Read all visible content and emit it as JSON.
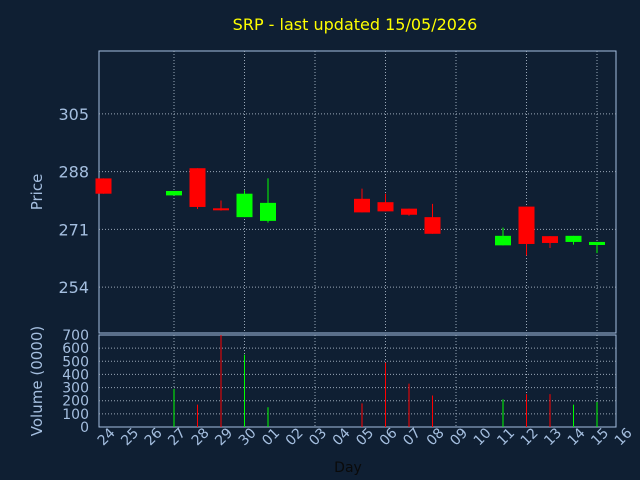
{
  "chart_data": {
    "type": "candlestick",
    "title": "SRP - last updated 15/05/2026",
    "ylabel_price": "Price",
    "ylabel_volume": "Volume (0000)",
    "xlabel": "Day",
    "x_tick_labels": [
      "24",
      "25",
      "26",
      "27",
      "28",
      "29",
      "30",
      "01",
      "02",
      "03",
      "04",
      "05",
      "06",
      "07",
      "08",
      "09",
      "10",
      "11",
      "12",
      "13",
      "14",
      "15",
      "16"
    ],
    "price_axis": {
      "ticks": [
        254,
        271,
        288,
        305
      ],
      "ylim": [
        240.5,
        323.5
      ]
    },
    "volume_axis": {
      "ticks": [
        0,
        100,
        200,
        300,
        400,
        500,
        600,
        700
      ],
      "ylim": [
        0,
        700
      ]
    },
    "grid": true,
    "colors": {
      "background": "#0f1f33",
      "title": "#ffff00",
      "axis_text": "#a5bfe0",
      "grid": "#9aa8b8",
      "up": "#00ff00",
      "down": "#ff0000"
    },
    "candles": [
      {
        "day": "24",
        "open": 286.0,
        "close": 281.5,
        "high": 286.0,
        "low": 281.5,
        "volume": 0
      },
      {
        "day": "27",
        "open": 281.0,
        "close": 282.3,
        "high": 282.3,
        "low": 281.0,
        "volume": 290
      },
      {
        "day": "28",
        "open": 289.0,
        "close": 277.6,
        "high": 289.0,
        "low": 277.0,
        "volume": 170
      },
      {
        "day": "29",
        "open": 277.2,
        "close": 276.8,
        "high": 279.5,
        "low": 276.5,
        "volume": 700
      },
      {
        "day": "30",
        "open": 274.6,
        "close": 281.5,
        "high": 282.5,
        "low": 274.6,
        "volume": 550
      },
      {
        "day": "01",
        "open": 273.5,
        "close": 278.8,
        "high": 286.0,
        "low": 273.0,
        "volume": 150
      },
      {
        "day": "05",
        "open": 280.0,
        "close": 276.0,
        "high": 283.0,
        "low": 276.0,
        "volume": 180
      },
      {
        "day": "06",
        "open": 279.0,
        "close": 276.3,
        "high": 281.5,
        "low": 276.3,
        "volume": 490
      },
      {
        "day": "07",
        "open": 277.1,
        "close": 275.3,
        "high": 277.1,
        "low": 275.0,
        "volume": 330
      },
      {
        "day": "08",
        "open": 274.6,
        "close": 269.7,
        "high": 278.5,
        "low": 269.7,
        "volume": 240
      },
      {
        "day": "11",
        "open": 266.3,
        "close": 269.1,
        "high": 271.5,
        "low": 266.3,
        "volume": 210
      },
      {
        "day": "12",
        "open": 277.7,
        "close": 266.7,
        "high": 277.7,
        "low": 263.3,
        "volume": 250
      },
      {
        "day": "13",
        "open": 269.0,
        "close": 267.0,
        "high": 269.0,
        "low": 265.5,
        "volume": 250
      },
      {
        "day": "14",
        "open": 267.3,
        "close": 269.1,
        "high": 269.1,
        "low": 266.5,
        "volume": 170
      },
      {
        "day": "15",
        "open": 266.4,
        "close": 267.3,
        "high": 267.3,
        "low": 264.0,
        "volume": 190
      }
    ]
  }
}
